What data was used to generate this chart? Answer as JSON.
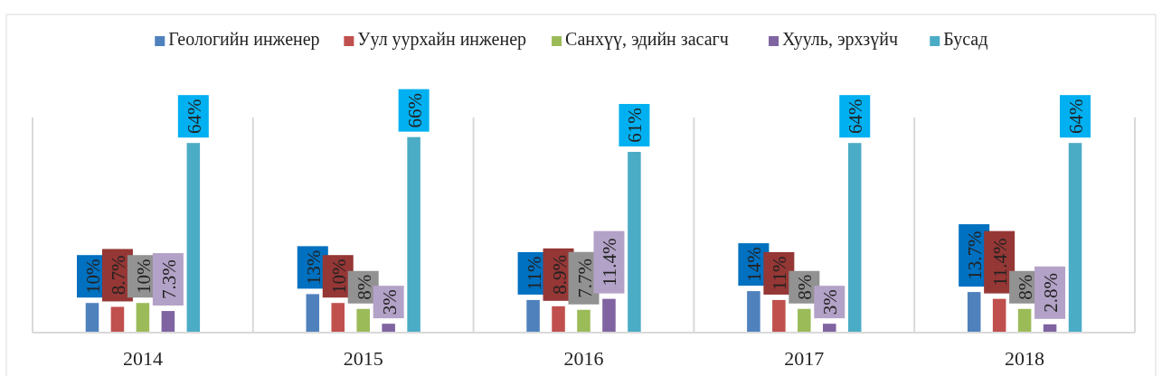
{
  "chart_data": {
    "type": "bar",
    "categories": [
      "2014",
      "2015",
      "2016",
      "2017",
      "2018"
    ],
    "series": [
      {
        "name": "Геологийн инженер",
        "color": "#4f81bd",
        "values": [
          10,
          13,
          11,
          14,
          13.7
        ],
        "value_labels": [
          "10%",
          "13%",
          "11%",
          "14%",
          "13.7%"
        ]
      },
      {
        "name": "Уул уурхайн инженер",
        "color": "#c0504d",
        "values": [
          8.7,
          10,
          8.9,
          11,
          11.4
        ],
        "value_labels": [
          "8.7%",
          "10%",
          "8.9%",
          "11%",
          "11.4%"
        ]
      },
      {
        "name": "Санхүү, эдийн засагч",
        "color": "#9bbb59",
        "values": [
          10,
          8,
          7.7,
          8,
          8
        ],
        "value_labels": [
          "10%",
          "8%",
          "7.7%",
          "8%",
          "8%"
        ]
      },
      {
        "name": "Хууль, эрхзүйч",
        "color": "#8064a2",
        "values": [
          7.3,
          3,
          11.4,
          3,
          2.8
        ],
        "value_labels": [
          "7.3%",
          "3%",
          "11.4%",
          "3%",
          "2.8%"
        ]
      },
      {
        "name": "Бусад",
        "color": "#4bacc6",
        "values": [
          64,
          66,
          61,
          64,
          64
        ],
        "value_labels": [
          "64%",
          "66%",
          "61%",
          "64%",
          "64%"
        ]
      }
    ],
    "grid": "x",
    "legend": "top"
  }
}
